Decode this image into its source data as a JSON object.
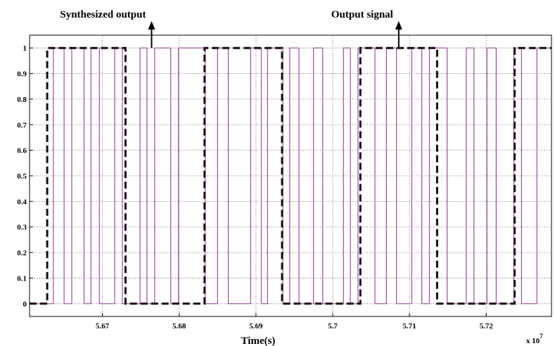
{
  "chart_data": {
    "type": "line",
    "title": "",
    "xlabel": "Time(s)",
    "ylabel": "",
    "x_multiplier": "x 10",
    "x_multiplier_exponent": "7",
    "xlim": [
      5.6605,
      5.7285
    ],
    "ylim": [
      -0.05,
      1.05
    ],
    "grid": true,
    "x_ticks": [
      5.67,
      5.68,
      5.69,
      5.7,
      5.71,
      5.72
    ],
    "x_tick_labels": [
      "5.67",
      "5.68",
      "5.69",
      "5.7",
      "5.71",
      "5.72"
    ],
    "y_ticks": [
      0,
      0.1,
      0.2,
      0.3,
      0.4,
      0.5,
      0.6,
      0.7,
      0.8,
      0.9,
      1
    ],
    "y_tick_labels": [
      "0",
      "0.1",
      "0.2",
      "0.3",
      "0.4",
      "0.5",
      "0.6",
      "0.7",
      "0.8",
      "0.9",
      "1"
    ],
    "series": [
      {
        "color": "#a349a4",
        "style": "solid",
        "step": true,
        "x": [
          5.6605,
          5.6636,
          5.6636,
          5.665,
          5.665,
          5.666,
          5.666,
          5.6676,
          5.6676,
          5.6685,
          5.6685,
          5.6696,
          5.6696,
          5.6716,
          5.6716,
          5.6726,
          5.6726,
          5.6749,
          5.6749,
          5.6758,
          5.6758,
          5.6768,
          5.6768,
          5.6789,
          5.6789,
          5.6799,
          5.6799,
          5.6834,
          5.6834,
          5.685,
          5.685,
          5.6864,
          5.6864,
          5.6893,
          5.6893,
          5.6907,
          5.6907,
          5.6915,
          5.6915,
          5.6935,
          5.6935,
          5.6944,
          5.6944,
          5.6956,
          5.6956,
          5.6975,
          5.6975,
          5.6987,
          5.6987,
          5.7014,
          5.7014,
          5.7023,
          5.7023,
          5.7033,
          5.7033,
          5.7055,
          5.7055,
          5.707,
          5.707,
          5.7083,
          5.7083,
          5.7103,
          5.7103,
          5.7116,
          5.7116,
          5.7126,
          5.7126,
          5.7149,
          5.7149,
          5.7174,
          5.7174,
          5.7184,
          5.7184,
          5.7201,
          5.7201,
          5.7213,
          5.7213,
          5.7236,
          5.7236,
          5.7246,
          5.7246,
          5.7266,
          5.7266,
          5.7285
        ],
        "values": [
          0,
          0,
          1,
          1,
          0,
          0,
          1,
          1,
          0,
          0,
          1,
          1,
          0,
          0,
          1,
          1,
          0,
          0,
          1,
          1,
          0,
          0,
          1,
          1,
          0,
          0,
          1,
          1,
          0,
          0,
          1,
          1,
          0,
          0,
          1,
          1,
          0,
          0,
          1,
          1,
          0,
          0,
          1,
          1,
          0,
          0,
          1,
          1,
          0,
          0,
          1,
          1,
          0,
          0,
          1,
          1,
          0,
          0,
          1,
          1,
          0,
          0,
          1,
          1,
          0,
          0,
          1,
          1,
          0,
          0,
          1,
          1,
          0,
          0,
          1,
          1,
          0,
          0,
          1,
          1,
          0,
          0,
          1,
          1
        ]
      },
      {
        "color": "#1a0a14",
        "style": "dashed",
        "step": true,
        "x": [
          5.6605,
          5.6628,
          5.6628,
          5.673,
          5.673,
          5.6833,
          5.6833,
          5.6934,
          5.6934,
          5.7036,
          5.7036,
          5.7136,
          5.7136,
          5.7237,
          5.7237,
          5.7285
        ],
        "values": [
          0,
          0,
          1,
          1,
          0,
          0,
          1,
          1,
          0,
          0,
          1,
          1,
          0,
          0,
          1,
          1
        ]
      }
    ],
    "annotations": [
      {
        "text": "Synthesized output",
        "x": 5.6764,
        "y": 1.0
      },
      {
        "text": "Output signal",
        "x": 5.7086,
        "y": 1.0
      }
    ]
  }
}
